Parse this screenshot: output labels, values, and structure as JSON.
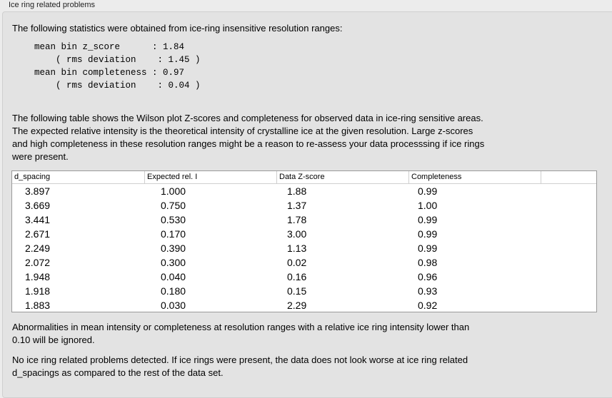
{
  "group_title": "Ice ring related problems",
  "intro": "The following statistics were obtained from ice-ring insensitive resolution ranges:",
  "stats": "mean bin z_score      : 1.84\n    ( rms deviation    : 1.45 )\nmean bin completeness : 0.97\n    ( rms deviation    : 0.04 )",
  "table_intro": [
    "The following table shows the Wilson plot Z-scores and completeness for observed data in ice-ring sensitive areas.",
    "The expected relative intensity is the theoretical intensity of crystalline ice at the given resolution. Large z-scores",
    "and high completeness in these resolution ranges might be a reason to re-assess your data processsing if ice rings",
    "were present."
  ],
  "table": {
    "columns": [
      "d_spacing",
      "Expected rel. I",
      "Data Z-score",
      "Completeness"
    ],
    "rows": [
      [
        "3.897",
        "1.000",
        "1.88",
        "0.99"
      ],
      [
        "3.669",
        "0.750",
        "1.37",
        "1.00"
      ],
      [
        "3.441",
        "0.530",
        "1.78",
        "0.99"
      ],
      [
        "2.671",
        "0.170",
        "3.00",
        "0.99"
      ],
      [
        "2.249",
        "0.390",
        "1.13",
        "0.99"
      ],
      [
        "2.072",
        "0.300",
        "0.02",
        "0.98"
      ],
      [
        "1.948",
        "0.040",
        "0.16",
        "0.96"
      ],
      [
        "1.918",
        "0.180",
        "0.15",
        "0.93"
      ],
      [
        "1.883",
        "0.030",
        "2.29",
        "0.92"
      ]
    ]
  },
  "note": [
    "Abnormalities in mean intensity or completeness at resolution ranges with a relative ice ring intensity lower than",
    "0.10 will be ignored."
  ],
  "conclusion": [
    "No ice ring related problems detected. If ice rings were present, the data does not look worse at ice ring related",
    "d_spacings as compared to the rest of the data set."
  ]
}
